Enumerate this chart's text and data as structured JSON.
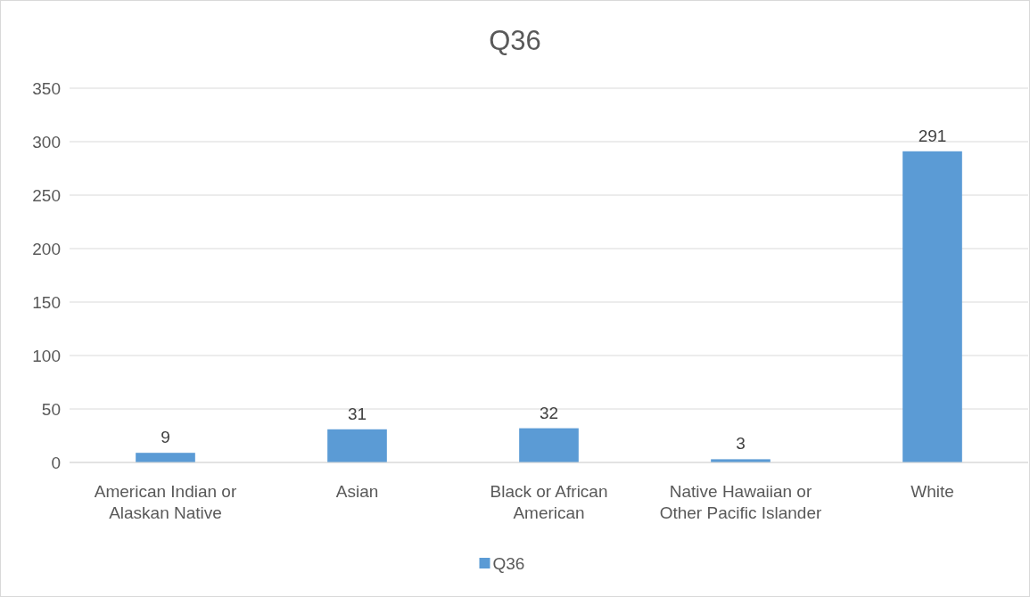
{
  "chart_data": {
    "type": "bar",
    "title": "Q36",
    "categories": [
      "American Indian or Alaskan Native",
      "Asian",
      "Black or African American",
      "Native Hawaiian or Other Pacific Islander",
      "White"
    ],
    "series": [
      {
        "name": "Q36",
        "color": "#5b9bd5",
        "values": [
          9,
          31,
          32,
          3,
          291
        ]
      }
    ],
    "ylim": [
      0,
      350
    ],
    "yticks": [
      0,
      50,
      100,
      150,
      200,
      250,
      300,
      350
    ],
    "grid": "y",
    "legend": "bottom",
    "data_labels": true
  }
}
